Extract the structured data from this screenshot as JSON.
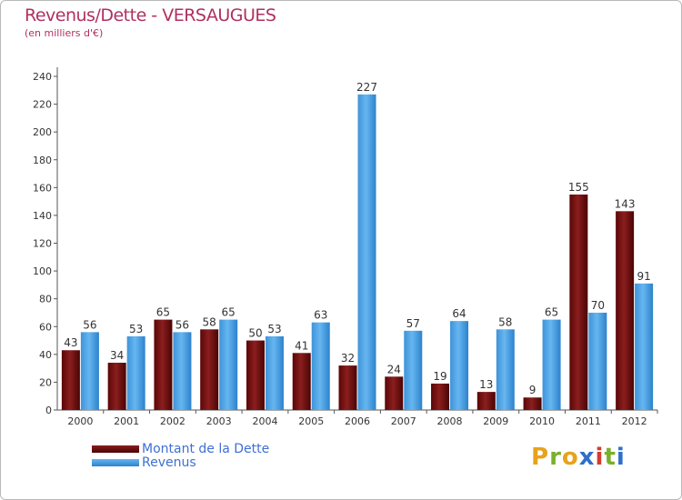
{
  "title": "Revenus/Dette - VERSAUGUES",
  "subtitle": "(en milliers d'€)",
  "logo": {
    "text": "Proxiti",
    "letters": [
      {
        "char": "P",
        "color": "#e8a21c"
      },
      {
        "char": "r",
        "color": "#7ab02c"
      },
      {
        "char": "o",
        "color": "#e8a21c"
      },
      {
        "char": "x",
        "color": "#2f6fc9"
      },
      {
        "char": "i",
        "color": "#d23c2c"
      },
      {
        "char": "t",
        "color": "#7ab02c"
      },
      {
        "char": "i",
        "color": "#2f6fc9"
      }
    ]
  },
  "legend": [
    {
      "label": "Montant de la Dette",
      "color": "#6e0a0a"
    },
    {
      "label": "Revenus",
      "color": "#4aa3e6"
    }
  ],
  "chart_data": {
    "type": "bar",
    "categories": [
      "2000",
      "2001",
      "2002",
      "2003",
      "2004",
      "2005",
      "2006",
      "2007",
      "2008",
      "2009",
      "2010",
      "2011",
      "2012"
    ],
    "series": [
      {
        "name": "Montant de la Dette",
        "color": "#6e0a0a",
        "values": [
          43,
          34,
          65,
          58,
          50,
          41,
          32,
          24,
          19,
          13,
          9,
          155,
          143
        ]
      },
      {
        "name": "Revenus",
        "color": "#4aa3e6",
        "values": [
          56,
          53,
          56,
          65,
          53,
          63,
          227,
          57,
          64,
          58,
          65,
          70,
          91
        ]
      }
    ],
    "yticks": [
      0,
      20,
      40,
      60,
      80,
      100,
      120,
      140,
      160,
      180,
      200,
      220,
      240
    ],
    "ylim": [
      0,
      240
    ],
    "grid": false,
    "legend_position": "bottom-left",
    "xlabel": "",
    "ylabel": ""
  }
}
